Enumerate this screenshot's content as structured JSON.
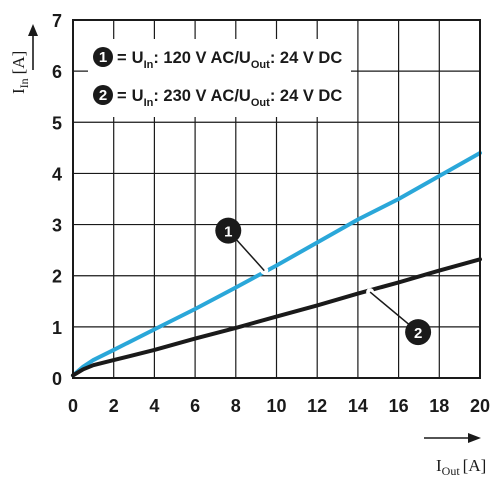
{
  "chart_data": {
    "type": "line",
    "xlabel": {
      "main": "I",
      "sub": "Out",
      "unit": "[A]"
    },
    "ylabel": {
      "main": "I",
      "sub": "In",
      "unit": "[A]"
    },
    "xlim": [
      0,
      20
    ],
    "ylim": [
      0,
      7
    ],
    "xticks": [
      "0",
      "2",
      "4",
      "6",
      "8",
      "10",
      "12",
      "14",
      "16",
      "18",
      "20"
    ],
    "yticks": [
      "0",
      "1",
      "2",
      "3",
      "4",
      "5",
      "6",
      "7"
    ],
    "grid": true,
    "legend_position": "top-left",
    "legend": [
      {
        "marker": "1",
        "eq": "=",
        "u_main": "U",
        "in_sub": "In",
        "value1": ": 120 V AC/U",
        "out_sub": "Out",
        "value2": ": 24 V DC"
      },
      {
        "marker": "2",
        "eq": "=",
        "u_main": "U",
        "in_sub": "In",
        "value1": ": 230 V AC/U",
        "out_sub": "Out",
        "value2": ": 24 V DC"
      }
    ],
    "series": [
      {
        "marker": "1",
        "color": "#2aa7d9",
        "x": [
          0,
          0.5,
          1,
          2,
          4,
          6,
          8,
          10,
          12,
          14,
          16,
          18,
          20
        ],
        "y": [
          0.05,
          0.22,
          0.35,
          0.55,
          0.95,
          1.35,
          1.77,
          2.2,
          2.65,
          3.1,
          3.5,
          3.95,
          4.4
        ]
      },
      {
        "marker": "2",
        "color": "#1a1a1a",
        "x": [
          0,
          0.5,
          1,
          2,
          4,
          6,
          8,
          10,
          12,
          14,
          16,
          18,
          20
        ],
        "y": [
          0.05,
          0.17,
          0.25,
          0.35,
          0.55,
          0.77,
          0.98,
          1.2,
          1.42,
          1.65,
          1.87,
          2.1,
          2.32
        ]
      }
    ],
    "callouts": [
      {
        "label": "1",
        "point": [
          9.4,
          2.1
        ]
      },
      {
        "label": "2",
        "point": [
          14.6,
          1.68
        ]
      }
    ]
  }
}
